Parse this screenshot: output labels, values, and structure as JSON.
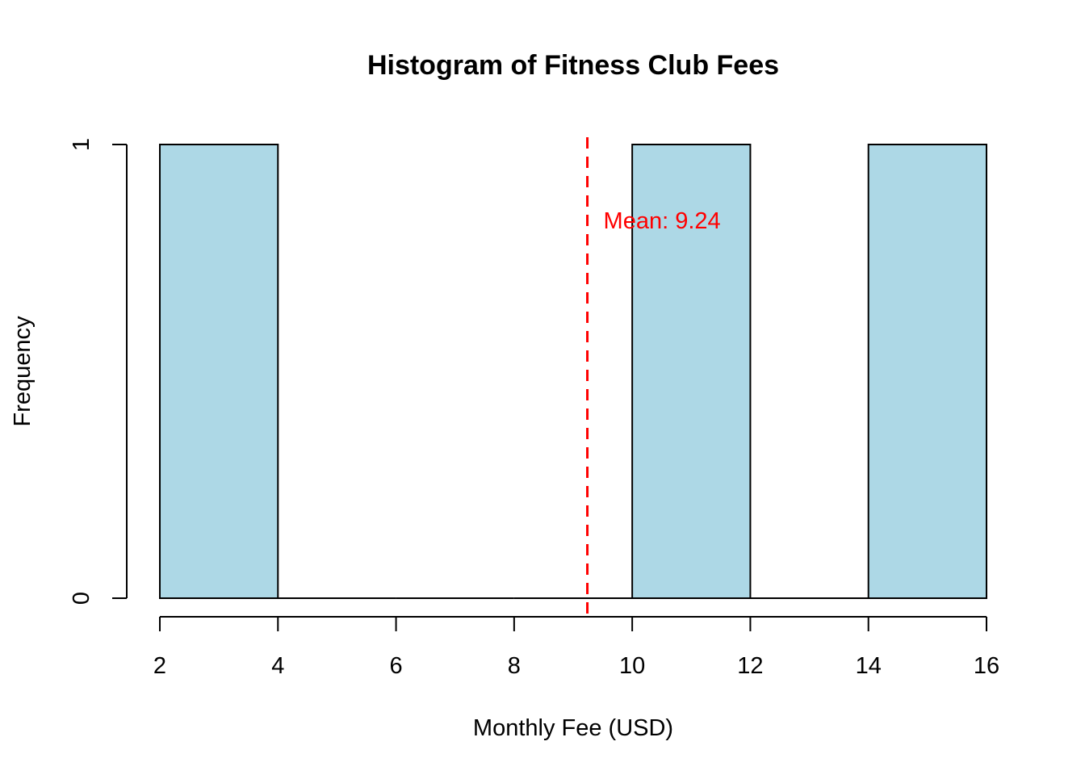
{
  "chart_data": {
    "type": "bar",
    "title": "Histogram of Fitness Club Fees",
    "xlabel": "Monthly Fee (USD)",
    "ylabel": "Frequency",
    "bins": [
      {
        "x0": 2,
        "x1": 4,
        "count": 1
      },
      {
        "x0": 4,
        "x1": 6,
        "count": 0
      },
      {
        "x0": 6,
        "x1": 8,
        "count": 0
      },
      {
        "x0": 8,
        "x1": 10,
        "count": 0
      },
      {
        "x0": 10,
        "x1": 12,
        "count": 1
      },
      {
        "x0": 12,
        "x1": 14,
        "count": 0
      },
      {
        "x0": 14,
        "x1": 16,
        "count": 1
      }
    ],
    "x_ticks": [
      2,
      4,
      6,
      8,
      10,
      12,
      14,
      16
    ],
    "y_ticks": [
      0,
      1
    ],
    "xlim": [
      2,
      16
    ],
    "ylim": [
      0,
      1
    ],
    "grid": false,
    "mean": 9.24,
    "mean_label": "Mean: 9.24",
    "colors": {
      "bar_fill": "#add8e6",
      "bar_stroke": "#000000",
      "mean_line": "#ff0000"
    }
  }
}
